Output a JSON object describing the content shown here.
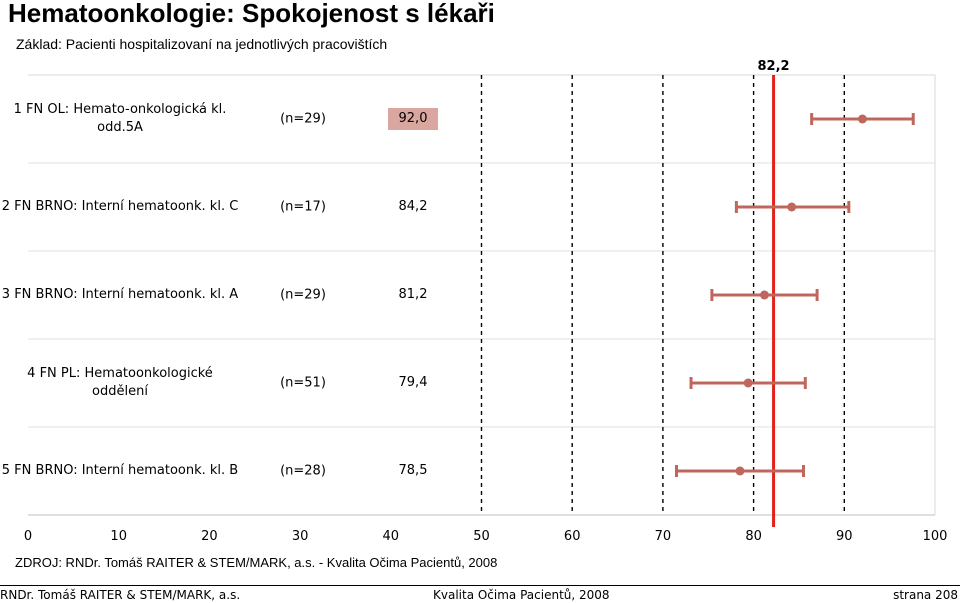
{
  "chart_data": {
    "type": "errorbar",
    "title": "Hematoonkologie: Spokojenost s lékaři",
    "subtitle": "Základ: Pacienti hospitalizovaní na jednotlivých pracovištích",
    "xlim": [
      0,
      100
    ],
    "x_ticks": [
      "0",
      "10",
      "20",
      "30",
      "40",
      "50",
      "60",
      "70",
      "80",
      "90",
      "100"
    ],
    "reference_value": 82.2,
    "reference_label": "82,2",
    "grid": "vertical dashed",
    "colors": {
      "reference": "#e32219",
      "marker": "#c0675d",
      "highlight": "#d9a6a0"
    },
    "categories": [
      {
        "label": "1 FN OL: Hemato-onkologická kl. odd.5A",
        "n": "(n=29)",
        "value_label": "92,0",
        "value": 92.0,
        "low": 86.4,
        "high": 97.6,
        "highlight": true
      },
      {
        "label": "2 FN BRNO: Interní hematoonk. kl. C",
        "n": "(n=17)",
        "value_label": "84,2",
        "value": 84.2,
        "low": 78.1,
        "high": 90.5,
        "highlight": false
      },
      {
        "label": "3 FN BRNO: Interní hematoonk. kl. A",
        "n": "(n=29)",
        "value_label": "81,2",
        "value": 81.2,
        "low": 75.4,
        "high": 87.0,
        "highlight": false
      },
      {
        "label": "4 FN PL: Hematoonkologické oddělení",
        "n": "(n=51)",
        "value_label": "79,4",
        "value": 79.4,
        "low": 73.1,
        "high": 85.7,
        "highlight": false
      },
      {
        "label": "5 FN BRNO: Interní hematoonk. kl. B",
        "n": "(n=28)",
        "value_label": "78,5",
        "value": 78.5,
        "low": 71.5,
        "high": 85.5,
        "highlight": false
      }
    ]
  },
  "source": "ZDROJ: RNDr. Tomáš RAITER & STEM/MARK, a.s. -  Kvalita Očima Pacientů, 2008",
  "footer": {
    "left": "RNDr. Tomáš RAITER & STEM/MARK, a.s.",
    "center": "Kvalita Očima Pacientů, 2008",
    "right": "strana 208"
  }
}
